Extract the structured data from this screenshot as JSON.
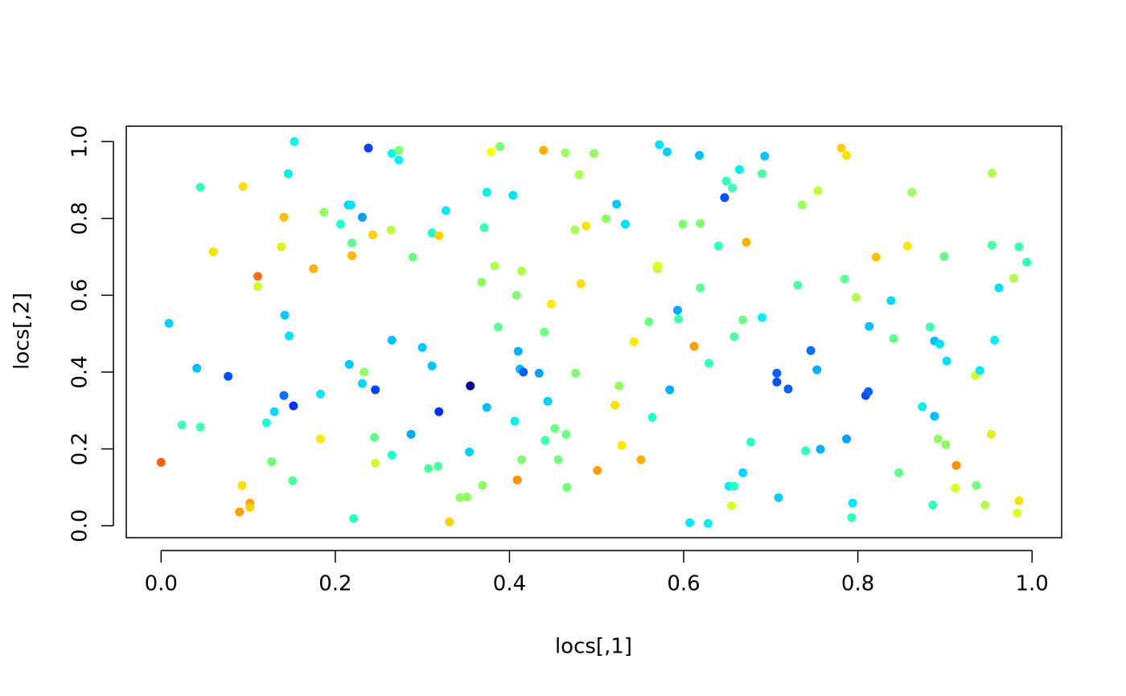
{
  "chart_data": {
    "type": "scatter",
    "xlabel": "locs[,1]",
    "ylabel": "locs[,2]",
    "xlim": [
      -0.04,
      1.034
    ],
    "ylim": [
      -0.031,
      1.04
    ],
    "xticks": [
      {
        "value": 0,
        "label": "0.0"
      },
      {
        "value": 0.2,
        "label": "0.2"
      },
      {
        "value": 0.4,
        "label": "0.4"
      },
      {
        "value": 0.6,
        "label": "0.6"
      },
      {
        "value": 0.8,
        "label": "0.8"
      },
      {
        "value": 1,
        "label": "1.0"
      }
    ],
    "yticks": [
      {
        "value": 0,
        "label": "0.0"
      },
      {
        "value": 0.2,
        "label": "0.2"
      },
      {
        "value": 0.4,
        "label": "0.4"
      },
      {
        "value": 0.6,
        "label": "0.6"
      },
      {
        "value": 0.8,
        "label": "0.8"
      },
      {
        "value": 1,
        "label": "1.0"
      }
    ],
    "x": [
      0.0,
      0.009,
      0.024,
      0.045,
      0.045,
      0.041,
      0.06,
      0.077,
      0.094,
      0.093,
      0.09,
      0.102,
      0.102,
      0.111,
      0.111,
      0.121,
      0.127,
      0.13,
      0.138,
      0.141,
      0.141,
      0.142,
      0.146,
      0.147,
      0.152,
      0.151,
      0.153,
      0.175,
      0.183,
      0.183,
      0.187,
      0.206,
      0.215,
      0.218,
      0.216,
      0.219,
      0.219,
      0.221,
      0.231,
      0.231,
      0.233,
      0.238,
      0.243,
      0.245,
      0.246,
      0.246,
      0.264,
      0.265,
      0.265,
      0.265,
      0.273,
      0.273,
      0.287,
      0.289,
      0.3,
      0.307,
      0.311,
      0.311,
      0.318,
      0.319,
      0.319,
      0.327,
      0.331,
      0.343,
      0.351,
      0.354,
      0.355,
      0.368,
      0.369,
      0.371,
      0.374,
      0.374,
      0.379,
      0.383,
      0.387,
      0.389,
      0.404,
      0.406,
      0.408,
      0.409,
      0.41,
      0.412,
      0.414,
      0.414,
      0.416,
      0.434,
      0.439,
      0.44,
      0.441,
      0.444,
      0.448,
      0.452,
      0.456,
      0.464,
      0.465,
      0.466,
      0.475,
      0.476,
      0.48,
      0.482,
      0.488,
      0.497,
      0.501,
      0.511,
      0.521,
      0.523,
      0.526,
      0.529,
      0.533,
      0.543,
      0.551,
      0.56,
      0.564,
      0.57,
      0.57,
      0.572,
      0.581,
      0.584,
      0.593,
      0.594,
      0.599,
      0.607,
      0.612,
      0.618,
      0.619,
      0.619,
      0.628,
      0.629,
      0.64,
      0.647,
      0.649,
      0.652,
      0.655,
      0.656,
      0.658,
      0.658,
      0.664,
      0.668,
      0.668,
      0.672,
      0.677,
      0.69,
      0.69,
      0.693,
      0.707,
      0.707,
      0.709,
      0.72,
      0.731,
      0.736,
      0.74,
      0.746,
      0.753,
      0.754,
      0.757,
      0.781,
      0.787,
      0.785,
      0.787,
      0.794,
      0.793,
      0.798,
      0.809,
      0.812,
      0.813,
      0.821,
      0.838,
      0.841,
      0.847,
      0.857,
      0.862,
      0.874,
      0.883,
      0.886,
      0.888,
      0.888,
      0.892,
      0.894,
      0.899,
      0.901,
      0.902,
      0.912,
      0.913,
      0.935,
      0.936,
      0.94,
      0.946,
      0.953,
      0.954,
      0.954,
      0.957,
      0.962,
      0.979,
      0.985,
      0.983,
      0.985,
      0.994
    ],
    "values": [
      0.165,
      0.527,
      0.262,
      0.881,
      0.257,
      0.41,
      0.713,
      0.389,
      0.883,
      0.105,
      0.036,
      0.059,
      0.048,
      0.649,
      0.623,
      0.268,
      0.167,
      0.297,
      0.726,
      0.803,
      0.339,
      0.548,
      0.916,
      0.494,
      0.312,
      0.117,
      1.0,
      0.669,
      0.343,
      0.226,
      0.816,
      0.785,
      0.835,
      0.835,
      0.42,
      0.736,
      0.703,
      0.019,
      0.803,
      0.37,
      0.4,
      0.983,
      0.757,
      0.23,
      0.354,
      0.163,
      0.77,
      0.969,
      0.483,
      0.184,
      0.977,
      0.952,
      0.238,
      0.699,
      0.464,
      0.149,
      0.762,
      0.416,
      0.155,
      0.755,
      0.297,
      0.82,
      0.01,
      0.073,
      0.075,
      0.192,
      0.364,
      0.634,
      0.105,
      0.776,
      0.868,
      0.308,
      0.973,
      0.676,
      0.517,
      0.987,
      0.86,
      0.272,
      0.6,
      0.119,
      0.454,
      0.408,
      0.663,
      0.172,
      0.4,
      0.397,
      0.977,
      0.504,
      0.222,
      0.324,
      0.577,
      0.253,
      0.172,
      0.971,
      0.238,
      0.1,
      0.77,
      0.397,
      0.914,
      0.63,
      0.78,
      0.969,
      0.144,
      0.799,
      0.314,
      0.837,
      0.364,
      0.209,
      0.785,
      0.479,
      0.172,
      0.531,
      0.282,
      0.669,
      0.676,
      0.992,
      0.973,
      0.354,
      0.561,
      0.538,
      0.785,
      0.008,
      0.467,
      0.964,
      0.787,
      0.619,
      0.006,
      0.423,
      0.728,
      0.854,
      0.897,
      0.103,
      0.052,
      0.879,
      0.103,
      0.492,
      0.927,
      0.536,
      0.138,
      0.738,
      0.218,
      0.916,
      0.542,
      0.962,
      0.397,
      0.374,
      0.073,
      0.356,
      0.626,
      0.835,
      0.195,
      0.456,
      0.406,
      0.872,
      0.199,
      0.983,
      0.964,
      0.642,
      0.226,
      0.059,
      0.021,
      0.594,
      0.339,
      0.349,
      0.519,
      0.699,
      0.586,
      0.487,
      0.138,
      0.728,
      0.868,
      0.31,
      0.517,
      0.054,
      0.481,
      0.285,
      0.226,
      0.473,
      0.701,
      0.211,
      0.429,
      0.098,
      0.157,
      0.391,
      0.105,
      0.404,
      0.054,
      0.238,
      0.918,
      0.73,
      0.483,
      0.619,
      0.644,
      0.065,
      0.033,
      0.726,
      0.686
    ],
    "colors": [
      "#ff6010",
      "#00d0ff",
      "#40ffb0",
      "#30ffc0",
      "#40ffb0",
      "#00c0ff",
      "#ffe000",
      "#0050ff",
      "#ffe000",
      "#ffe000",
      "#ffa000",
      "#ffa010",
      "#ffd000",
      "#ff7010",
      "#d0ff30",
      "#20ffd0",
      "#70ff80",
      "#00d8ff",
      "#e0f020",
      "#ffc000",
      "#0070ff",
      "#00c8ff",
      "#00f0f0",
      "#00e0ff",
      "#0030ff",
      "#50ffa0",
      "#00ffe0",
      "#ffb000",
      "#00e8ff",
      "#ffe800",
      "#90ff60",
      "#20ffd0",
      "#00d0ff",
      "#00e0ff",
      "#00c8ff",
      "#60ff90",
      "#ffb800",
      "#30ffc0",
      "#00a0ff",
      "#00d8ff",
      "#90ff60",
      "#0040ff",
      "#ffd000",
      "#60ff90",
      "#0040ff",
      "#d0ff30",
      "#c0ff40",
      "#00ffe0",
      "#00c0ff",
      "#20ffd0",
      "#80ff70",
      "#00f0ff",
      "#00a8ff",
      "#70ff80",
      "#00c8ff",
      "#50ffa0",
      "#20ffd0",
      "#00c8ff",
      "#50ffa0",
      "#ffd000",
      "#0030ff",
      "#00e8ff",
      "#ffd000",
      "#90ff60",
      "#90ff60",
      "#00d0ff",
      "#000090",
      "#90ff60",
      "#90ff60",
      "#40ffb0",
      "#00f0f0",
      "#00c0ff",
      "#ffff00",
      "#b0ff50",
      "#60ff90",
      "#80ff70",
      "#00e0ff",
      "#00f0f0",
      "#80ff70",
      "#ff9000",
      "#00b0ff",
      "#00b8ff",
      "#b0ff50",
      "#80ff70",
      "#0060ff",
      "#00a0ff",
      "#ffb000",
      "#70ff80",
      "#40ffb0",
      "#00d0ff",
      "#ffec00",
      "#70ff80",
      "#70ff80",
      "#a0ff60",
      "#70ff80",
      "#70ff80",
      "#b0ff50",
      "#80ff70",
      "#b0ff50",
      "#ffe000",
      "#ffe000",
      "#90ff60",
      "#ffa000",
      "#90ff60",
      "#ffe000",
      "#00c8ff",
      "#90ff60",
      "#ffe800",
      "#00e0ff",
      "#ffe800",
      "#ffb000",
      "#70ff80",
      "#20ffd0",
      "#b0ff50",
      "#e0ff20",
      "#00e0ff",
      "#00d0ff",
      "#00b0ff",
      "#00a8ff",
      "#40ffb0",
      "#80ff70",
      "#00e8ff",
      "#ffa000",
      "#00c0ff",
      "#80ff70",
      "#60ff90",
      "#00f0f0",
      "#30ffc0",
      "#30ffc0",
      "#0050ff",
      "#30ffc0",
      "#00f0f0",
      "#d0ff30",
      "#40ffb0",
      "#30ffc0",
      "#50ffa0",
      "#00f0f0",
      "#70ff80",
      "#00d8ff",
      "#ffb000",
      "#30ffc0",
      "#50ffa0",
      "#00f0ff",
      "#00c8ff",
      "#0060ff",
      "#0050ff",
      "#00d0ff",
      "#0060ff",
      "#50ffa0",
      "#a0ff60",
      "#30ffc0",
      "#0070ff",
      "#00b0ff",
      "#c0ff40",
      "#00b0ff",
      "#ffd000",
      "#ffe000",
      "#60ff90",
      "#00a0ff",
      "#00e8ff",
      "#30ffc0",
      "#b0ff50",
      "#0050ff",
      "#0060ff",
      "#00c0ff",
      "#ffc000",
      "#00d8ff",
      "#60ff90",
      "#60ff90",
      "#ffe800",
      "#a0ff60",
      "#00f0f0",
      "#40ffb0",
      "#30ffc0",
      "#00c0ff",
      "#00c0ff",
      "#90ff60",
      "#00e0ff",
      "#60ff90",
      "#90ff60",
      "#00e0ff",
      "#e0ff20",
      "#ff9000",
      "#d0ff30",
      "#70ff80",
      "#00e8ff",
      "#b0ff50",
      "#e0f020",
      "#b0ff50",
      "#50ffa0",
      "#00f0f0",
      "#00e0ff",
      "#b0ff50",
      "#ffe000",
      "#e0ff20",
      "#40ffb0",
      "#30ffc0"
    ]
  }
}
